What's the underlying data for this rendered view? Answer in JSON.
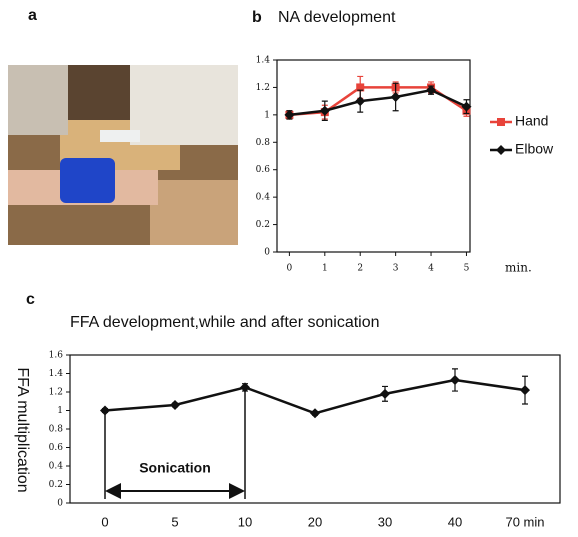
{
  "panel_labels": [
    "a",
    "b",
    "c"
  ],
  "chart_data": [
    {
      "type": "line",
      "title": "NA development",
      "xlabel": "min.",
      "x": [
        0,
        1,
        2,
        3,
        4,
        5
      ],
      "xlim": [
        -0.35,
        5.1
      ],
      "xticks": [
        0,
        1,
        2,
        3,
        4,
        5
      ],
      "ylim": [
        0,
        1.4
      ],
      "yticks": [
        0,
        0.2,
        0.4,
        0.6,
        0.8,
        1,
        1.2,
        1.4
      ],
      "series": [
        {
          "name": "Hand",
          "color": "#e8433a",
          "marker": "square",
          "values": [
            1.0,
            1.02,
            1.2,
            1.2,
            1.2,
            1.03
          ],
          "errors": [
            0.03,
            0.05,
            0.08,
            0.04,
            0.04,
            0.04
          ]
        },
        {
          "name": "Elbow",
          "color": "#111111",
          "marker": "diamond",
          "values": [
            1.0,
            1.03,
            1.1,
            1.13,
            1.18,
            1.06
          ],
          "errors": [
            0.03,
            0.07,
            0.08,
            0.1,
            0.03,
            0.05
          ]
        }
      ],
      "legend": "right"
    },
    {
      "type": "line",
      "title": "FFA development,while and after sonication",
      "ylabel": "FFA multiplication",
      "categories": [
        "0",
        "5",
        "10",
        "20",
        "30",
        "40",
        "70 min"
      ],
      "ylim": [
        0,
        1.6
      ],
      "yticks": [
        0,
        0.2,
        0.4,
        0.6,
        0.8,
        1,
        1.2,
        1.4,
        1.6
      ],
      "series": [
        {
          "color": "#111111",
          "marker": "diamond",
          "values": [
            1.0,
            1.06,
            1.25,
            0.97,
            1.18,
            1.33,
            1.22
          ],
          "errors": [
            0.02,
            0.02,
            0.04,
            0.02,
            0.08,
            0.12,
            0.15
          ]
        }
      ],
      "annotation": "Sonication"
    }
  ]
}
